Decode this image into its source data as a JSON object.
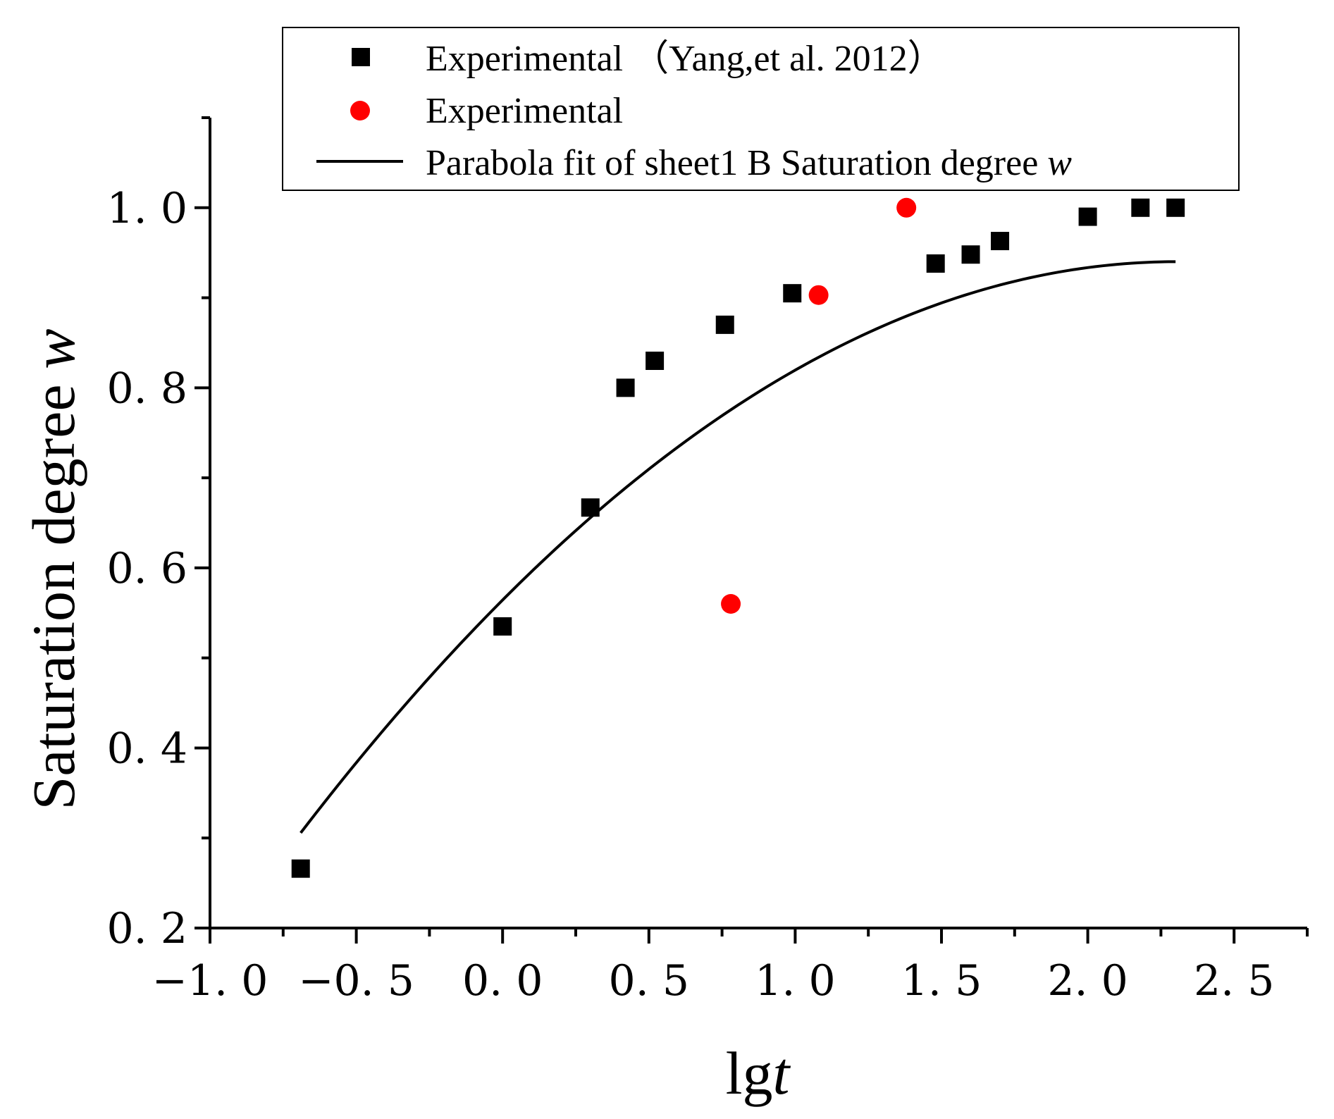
{
  "chart_data": {
    "type": "scatter",
    "xlabel_main": "lg",
    "xlabel_var": "t",
    "ylabel_main": "Saturation degree ",
    "ylabel_var": "w",
    "xlim": [
      -1.0,
      2.75
    ],
    "ylim": [
      0.2,
      1.1
    ],
    "x_ticks": [
      -1.0,
      -0.5,
      0.0,
      0.5,
      1.0,
      1.5,
      2.0,
      2.5
    ],
    "x_tick_labels": [
      "−1. 0",
      "−0. 5",
      "0. 0",
      "0. 5",
      "1. 0",
      "1. 5",
      "2. 0",
      "2. 5"
    ],
    "y_ticks": [
      0.2,
      0.4,
      0.6,
      0.8,
      1.0
    ],
    "y_tick_labels": [
      "0. 2",
      "0. 4",
      "0. 6",
      "0. 8",
      "1. 0"
    ],
    "x_minor_ticks": [
      -0.75,
      -0.25,
      0.25,
      0.75,
      1.25,
      1.75,
      2.25,
      2.75
    ],
    "y_minor_ticks": [
      0.3,
      0.5,
      0.7,
      0.9,
      1.1
    ],
    "series": [
      {
        "name": "Experimental （Yang,et al. 2012）",
        "marker": "square",
        "color": "#000000",
        "x": [
          -0.69,
          0.0,
          0.3,
          0.42,
          0.52,
          0.76,
          0.99,
          1.48,
          1.6,
          1.7,
          2.0,
          2.18,
          2.3
        ],
        "y": [
          0.266,
          0.535,
          0.667,
          0.8,
          0.83,
          0.87,
          0.905,
          0.938,
          0.948,
          0.963,
          0.99,
          1.0,
          1.0
        ]
      },
      {
        "name": "Experimental",
        "marker": "circle",
        "color": "#ff0000",
        "x": [
          0.78,
          1.08,
          1.38
        ],
        "y": [
          0.56,
          0.903,
          1.0
        ]
      },
      {
        "name_main": "Parabola fit of sheet1 B Saturation degree ",
        "name_var": "w",
        "type": "line",
        "color": "#000000",
        "x_range": [
          -0.69,
          2.3
        ],
        "coefficients": {
          "a": -0.0707,
          "b": 0.326,
          "c": 0.5643
        }
      }
    ]
  }
}
